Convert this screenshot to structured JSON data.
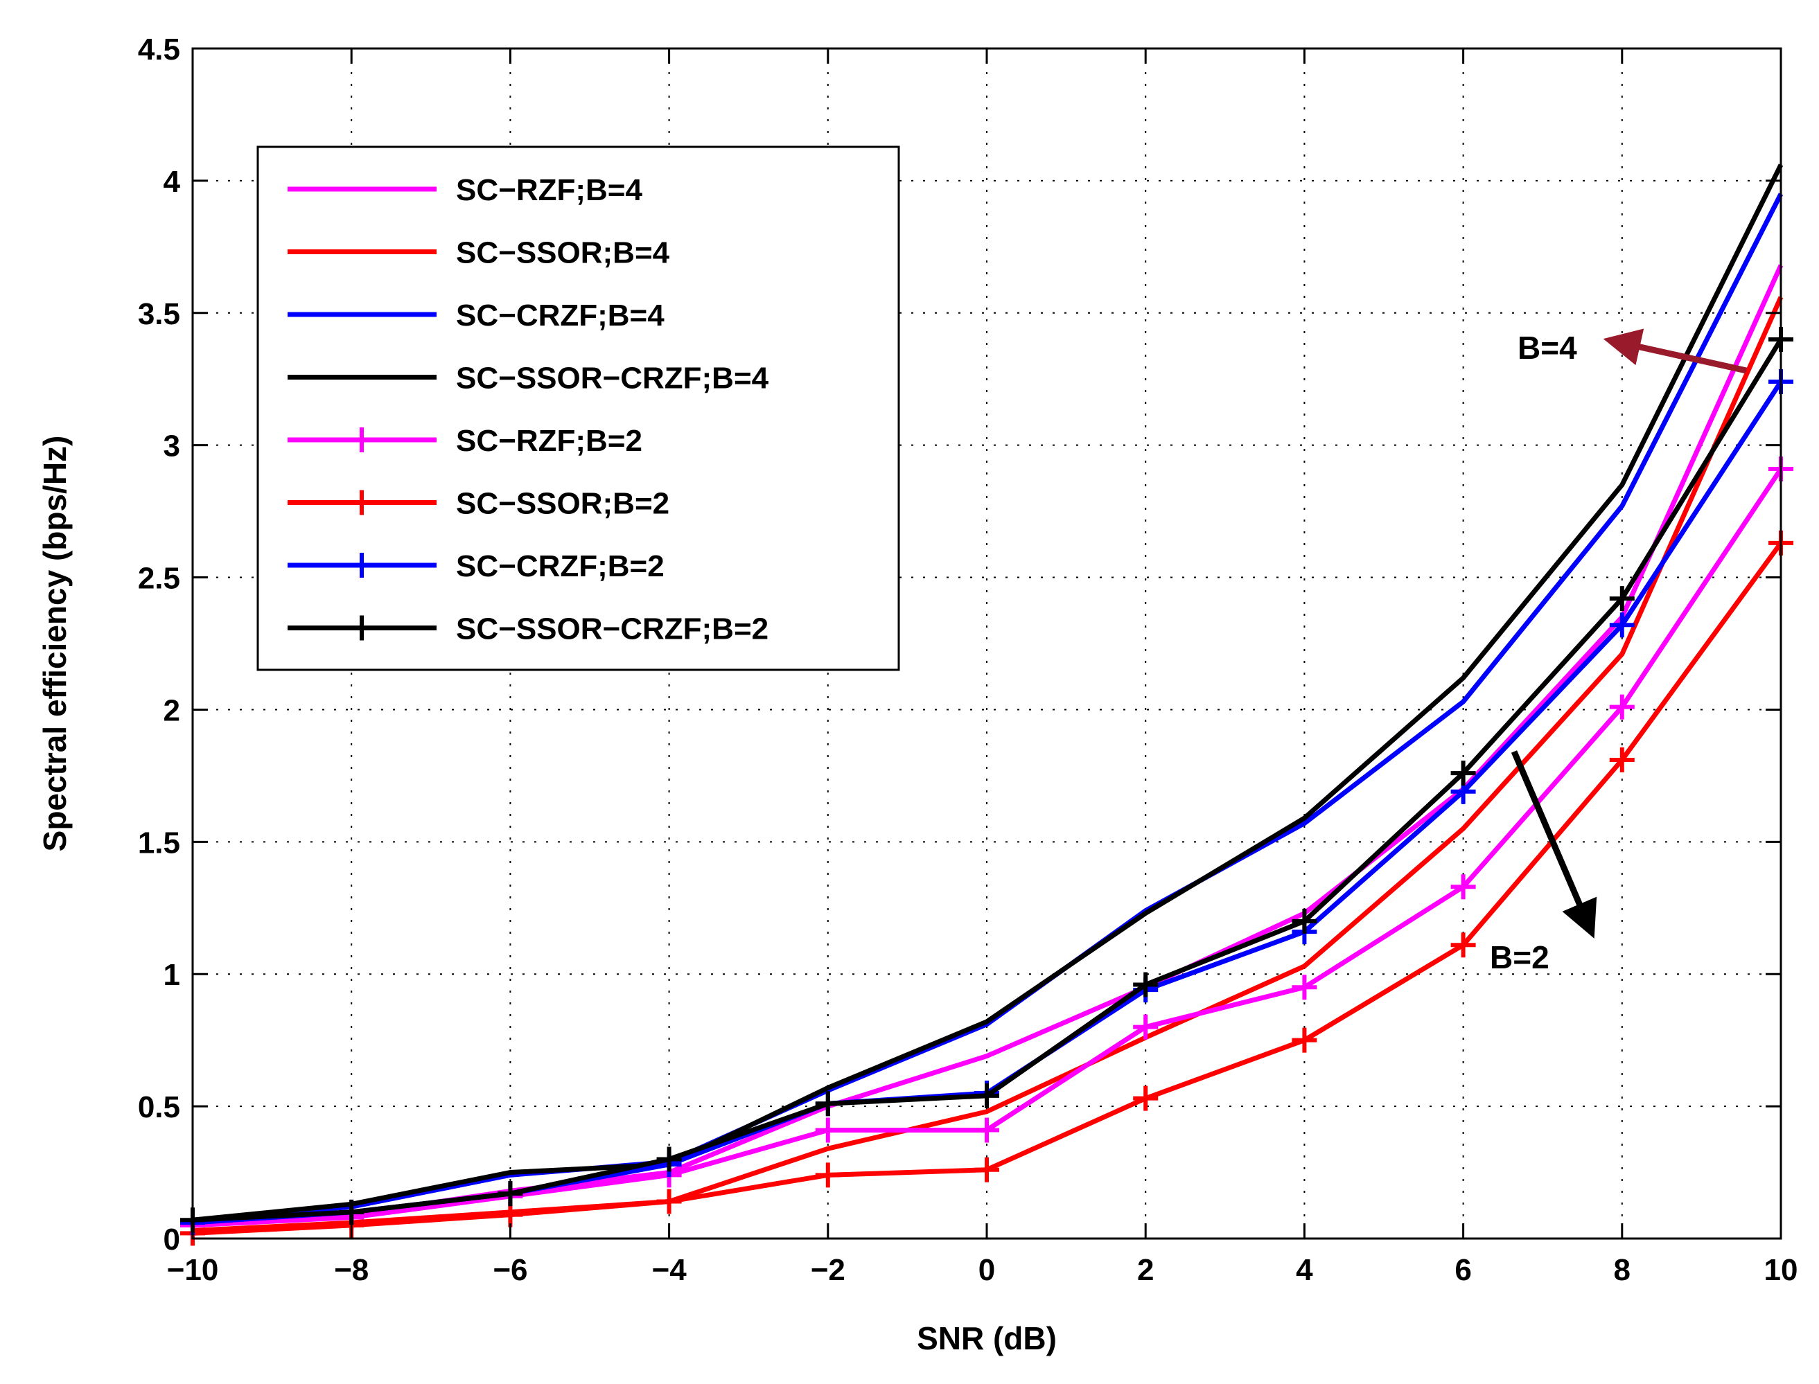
{
  "chart_data": {
    "type": "line",
    "title": "",
    "xlabel": "SNR (dB)",
    "ylabel": "Spectral efficiency (bps/Hz)",
    "xlim": [
      -10,
      10
    ],
    "ylim": [
      0,
      4.5
    ],
    "x": [
      -10,
      -8,
      -6,
      -4,
      -2,
      0,
      2,
      4,
      6,
      8,
      10
    ],
    "x_ticks": [
      -10,
      -8,
      -6,
      -4,
      -2,
      0,
      2,
      4,
      6,
      8,
      10
    ],
    "x_tick_labels": [
      "−10",
      "−8",
      "−6",
      "−4",
      "−2",
      "0",
      "2",
      "4",
      "6",
      "8",
      "10"
    ],
    "y_ticks": [
      0,
      0.5,
      1,
      1.5,
      2,
      2.5,
      3,
      3.5,
      4,
      4.5
    ],
    "y_tick_labels": [
      "0",
      "0.5",
      "1",
      "1.5",
      "2",
      "2.5",
      "3",
      "3.5",
      "4",
      "4.5"
    ],
    "grid": true,
    "legend_position": "upper-left",
    "series": [
      {
        "name": "SC−RZF;B=4",
        "color": "#ff00ff",
        "marker": "none",
        "values": [
          0.05,
          0.09,
          0.18,
          0.25,
          0.5,
          0.69,
          0.95,
          1.23,
          1.7,
          2.35,
          3.68
        ]
      },
      {
        "name": "SC−SSOR;B=4",
        "color": "#ff0000",
        "marker": "none",
        "values": [
          0.03,
          0.06,
          0.1,
          0.14,
          0.34,
          0.48,
          0.76,
          1.03,
          1.55,
          2.21,
          3.56
        ]
      },
      {
        "name": "SC−CRZF;B=4",
        "color": "#0000ff",
        "marker": "none",
        "values": [
          0.07,
          0.12,
          0.24,
          0.29,
          0.56,
          0.81,
          1.24,
          1.57,
          2.03,
          2.77,
          3.95
        ]
      },
      {
        "name": "SC−SSOR−CRZF;B=4",
        "color": "#000000",
        "marker": "none",
        "values": [
          0.07,
          0.13,
          0.25,
          0.28,
          0.57,
          0.82,
          1.23,
          1.59,
          2.12,
          2.85,
          4.06
        ]
      },
      {
        "name": "SC−RZF;B=2",
        "color": "#ff00ff",
        "marker": "plus",
        "values": [
          0.05,
          0.08,
          0.16,
          0.24,
          0.41,
          0.41,
          0.8,
          0.95,
          1.33,
          2.01,
          2.91
        ]
      },
      {
        "name": "SC−SSOR;B=2",
        "color": "#ff0000",
        "marker": "plus",
        "values": [
          0.02,
          0.05,
          0.09,
          0.14,
          0.24,
          0.26,
          0.53,
          0.75,
          1.11,
          1.81,
          2.63
        ]
      },
      {
        "name": "SC−CRZF;B=2",
        "color": "#0000ff",
        "marker": "plus",
        "values": [
          0.06,
          0.1,
          0.17,
          0.28,
          0.51,
          0.55,
          0.94,
          1.16,
          1.69,
          2.32,
          3.24
        ]
      },
      {
        "name": "SC−SSOR−CRZF;B=2",
        "color": "#000000",
        "marker": "plus",
        "values": [
          0.07,
          0.1,
          0.17,
          0.3,
          0.51,
          0.54,
          0.96,
          1.2,
          1.76,
          2.42,
          3.4
        ]
      }
    ],
    "annotations": [
      {
        "text": "B=4",
        "color": "#991b2b",
        "arrow_points_to": "left"
      },
      {
        "text": "B=2",
        "color": "#000000",
        "arrow_points_to": "down-right"
      }
    ]
  }
}
